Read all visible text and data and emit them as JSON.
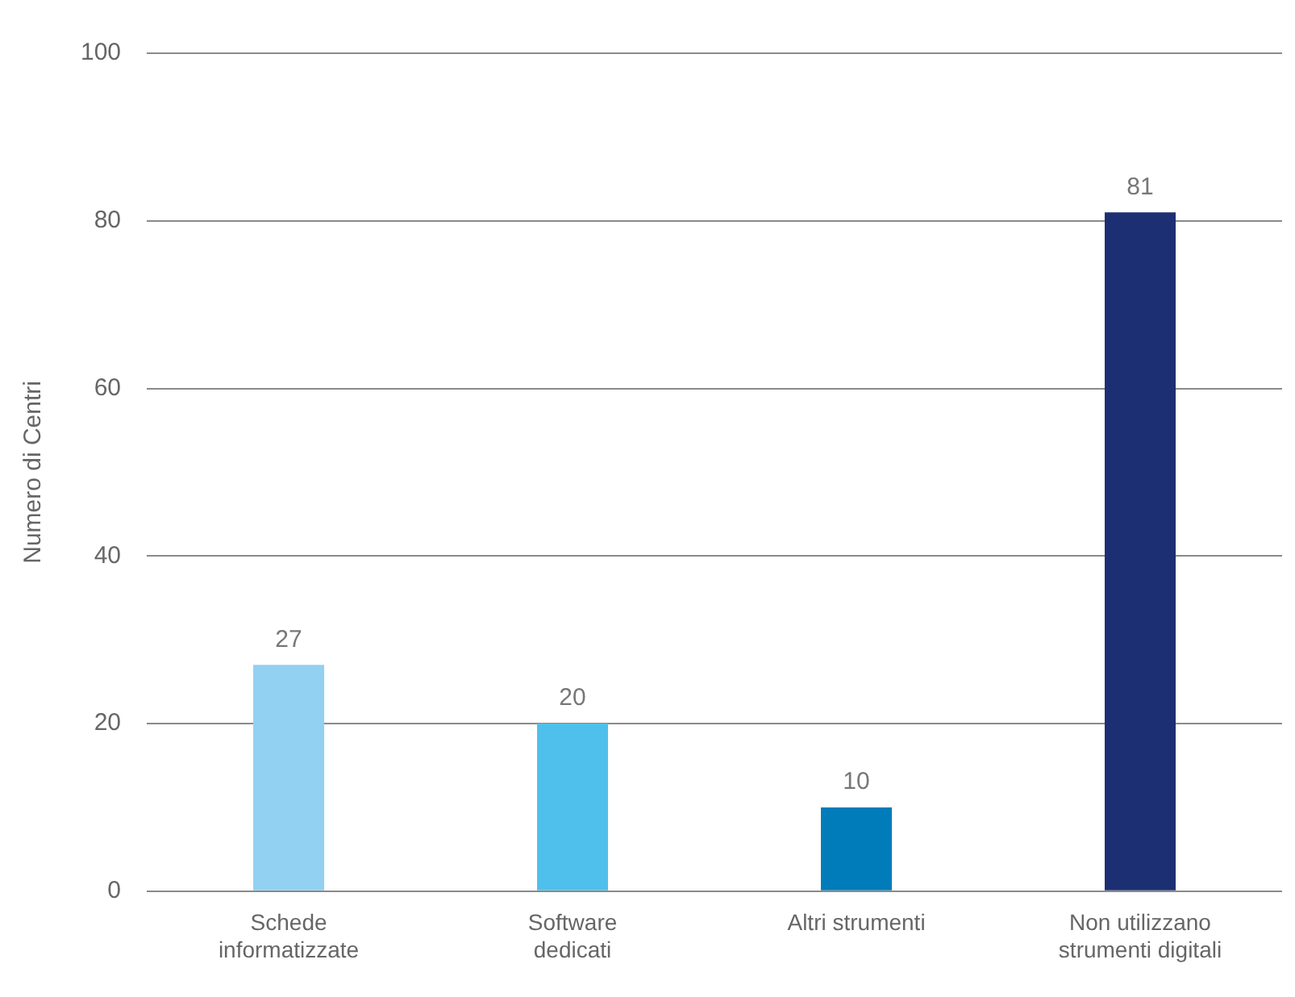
{
  "chart_data": {
    "type": "bar",
    "ylabel": "Numero di Centri",
    "categories": [
      "Schede\ninformatizzate",
      "Software\ndedicati",
      "Altri strumenti",
      "Non utilizzano\nstrumenti digitali"
    ],
    "values": [
      27,
      20,
      10,
      81
    ],
    "colors": [
      "#92d1f1",
      "#4fc0eb",
      "#007cba",
      "#1d2f73"
    ],
    "ylim": [
      0,
      100
    ],
    "yticks": [
      0,
      20,
      40,
      60,
      80,
      100
    ],
    "grid": "y",
    "data_labels": true
  }
}
